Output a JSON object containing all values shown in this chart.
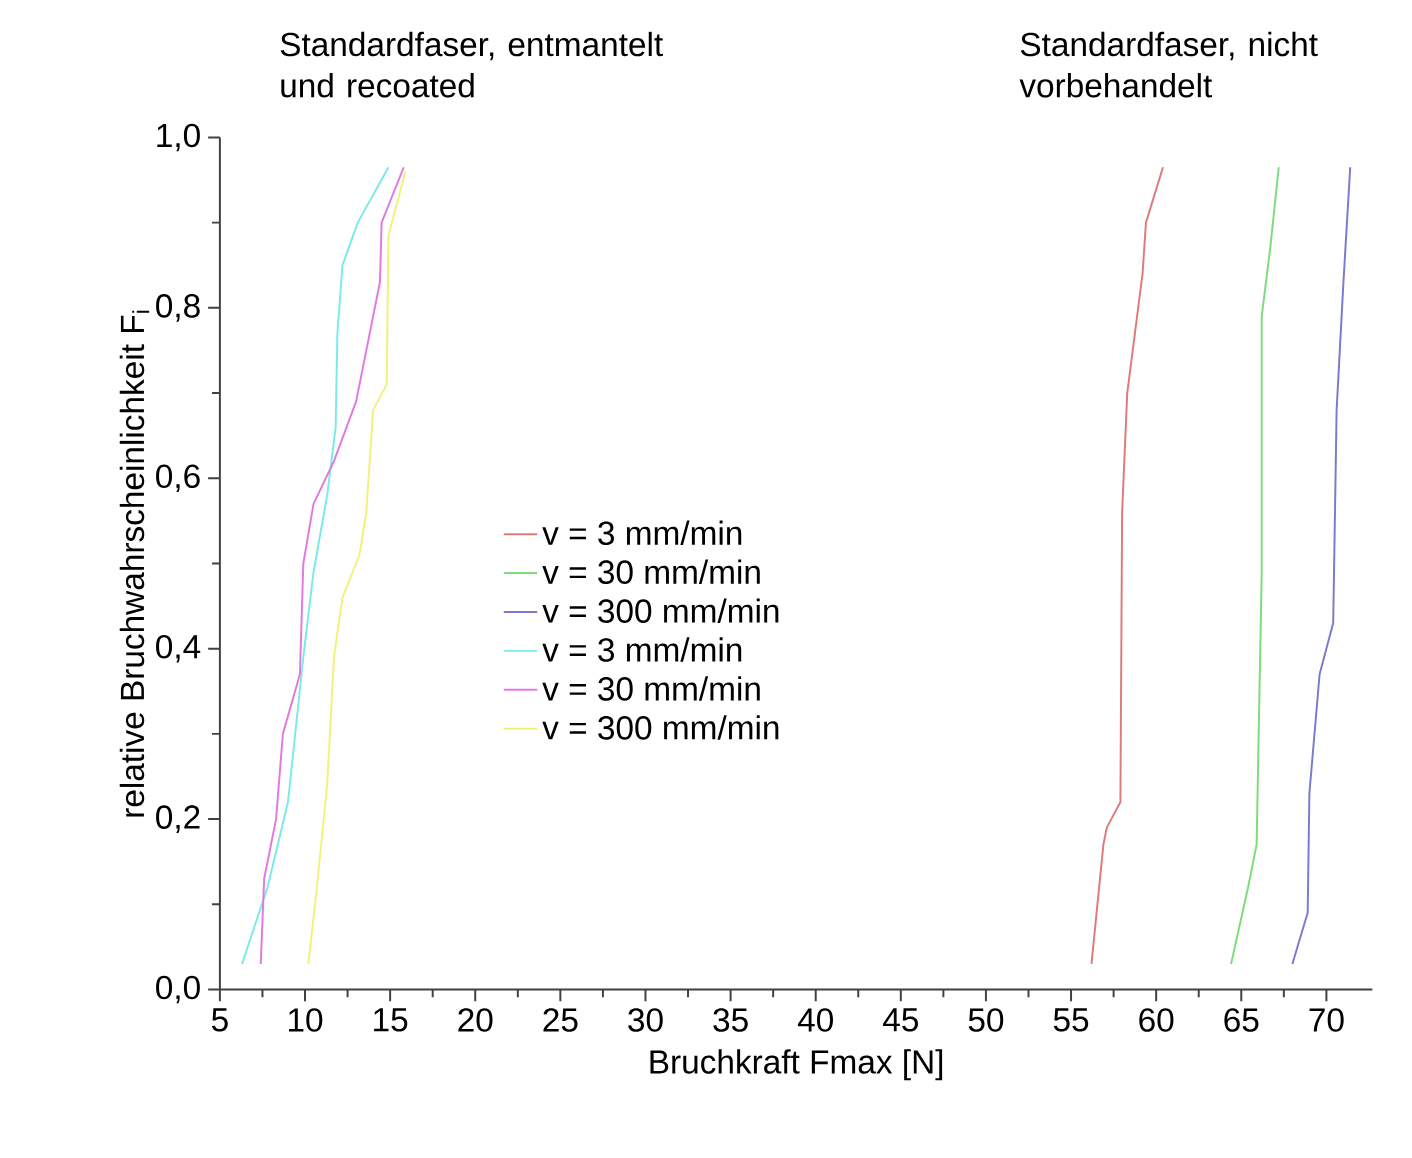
{
  "chart_data": {
    "type": "line",
    "xlabel": "Bruchkraft Fmax [N]",
    "ylabel": "relative Bruchwahrscheinlichkeit F$_{i}$",
    "annotations": [
      "Standardfaser, entmantelt und recoated",
      "Standardfaser, nicht vorbehandelt"
    ],
    "xlim": [
      5,
      72.7
    ],
    "ylim": [
      0,
      1
    ],
    "xticks": [
      5,
      10,
      15,
      20,
      25,
      30,
      35,
      40,
      45,
      50,
      55,
      60,
      65,
      70
    ],
    "yticks": [
      {
        "value": 0,
        "label": "0,0"
      },
      {
        "value": 0.2,
        "label": "0,2"
      },
      {
        "value": 0.4,
        "label": "0,4"
      },
      {
        "value": 0.6,
        "label": "0,6"
      },
      {
        "value": 0.8,
        "label": "0,8"
      },
      {
        "value": 1,
        "label": "1,0"
      }
    ],
    "grid": false,
    "legend": "left",
    "marker": "none",
    "line_style": "solid",
    "series": [
      {
        "name": "v = 3 mm/min",
        "color": "#e07a7a",
        "x": [
          56.2,
          56.9,
          57.1,
          57.9,
          58.0,
          58.3,
          59.2,
          59.4,
          60.4
        ],
        "values": [
          0.03,
          0.17,
          0.19,
          0.22,
          0.56,
          0.7,
          0.84,
          0.9,
          0.965
        ]
      },
      {
        "name": "v = 30 mm/min",
        "color": "#7ddc7a",
        "x": [
          64.4,
          65.4,
          65.9,
          66.2,
          66.2,
          66.7,
          67.2
        ],
        "values": [
          0.03,
          0.12,
          0.17,
          0.49,
          0.79,
          0.87,
          0.965
        ]
      },
      {
        "name": "v = 300 mm/min",
        "color": "#7a7ad0",
        "x": [
          68.0,
          68.9,
          69.0,
          69.6,
          70.4,
          70.6,
          71.0,
          71.4
        ],
        "values": [
          0.03,
          0.09,
          0.23,
          0.37,
          0.43,
          0.68,
          0.83,
          0.965
        ]
      },
      {
        "name": "v = 3 mm/min",
        "color": "#7aeaea",
        "x": [
          6.3,
          7.8,
          9.0,
          9.9,
          10.5,
          11.3,
          11.8,
          11.9,
          12.2,
          13.1,
          14.9
        ],
        "values": [
          0.03,
          0.12,
          0.22,
          0.39,
          0.49,
          0.58,
          0.66,
          0.77,
          0.85,
          0.9,
          0.965
        ]
      },
      {
        "name": "v = 30 mm/min",
        "color": "#e07ae0",
        "x": [
          7.4,
          7.6,
          8.3,
          8.7,
          9.7,
          9.9,
          10.5,
          11.7,
          13.0,
          13.8,
          14.4,
          14.5,
          15.8
        ],
        "values": [
          0.03,
          0.13,
          0.2,
          0.3,
          0.37,
          0.5,
          0.57,
          0.62,
          0.69,
          0.77,
          0.83,
          0.9,
          0.965
        ]
      },
      {
        "name": "v = 300 mm/min",
        "color": "#f2f27a",
        "x": [
          10.2,
          10.7,
          11.3,
          11.7,
          12.2,
          13.2,
          13.6,
          14.0,
          14.8,
          14.9,
          15.9
        ],
        "values": [
          0.03,
          0.12,
          0.24,
          0.39,
          0.46,
          0.51,
          0.56,
          0.68,
          0.71,
          0.885,
          0.96
        ]
      }
    ]
  }
}
